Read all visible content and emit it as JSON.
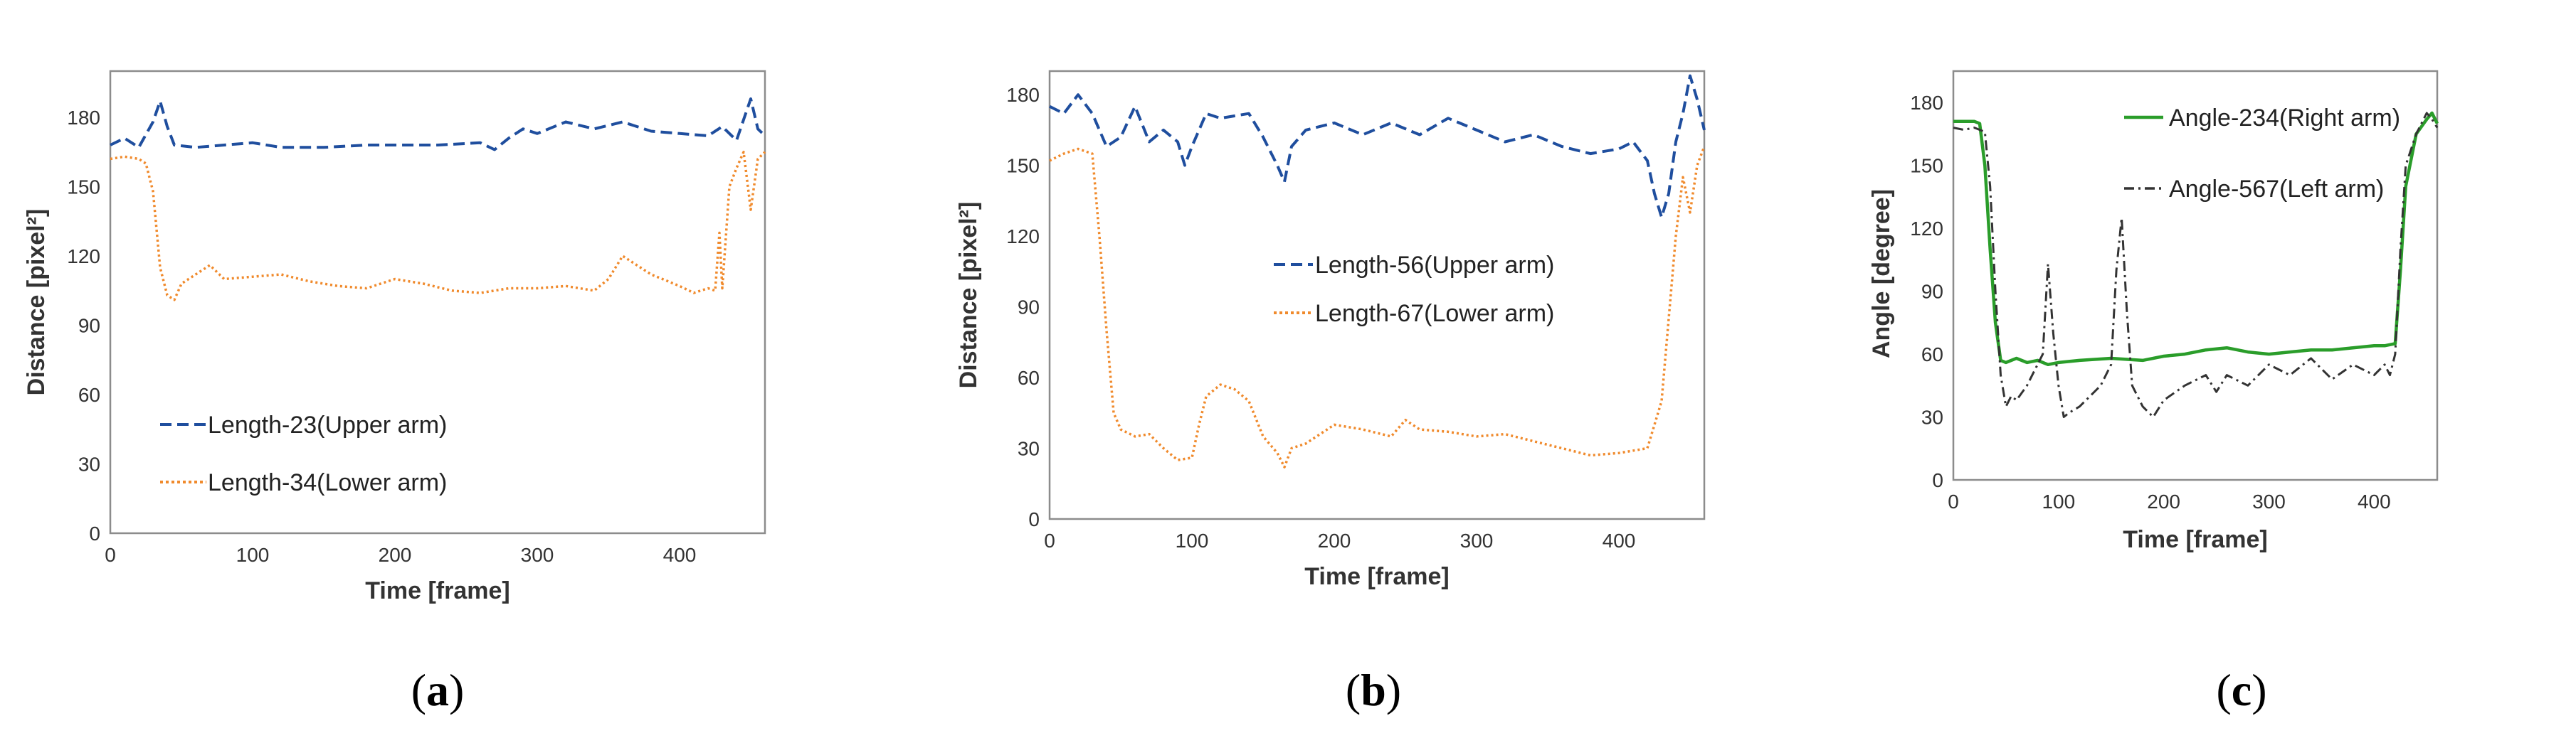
{
  "colors": {
    "upper": "#1f4e9e",
    "lower": "#f08a2c",
    "right_arm": "#2a9d2a",
    "left_arm": "#333333"
  },
  "chart_data": [
    {
      "id": "a",
      "type": "line",
      "caption": "a",
      "xlabel": "Time [frame]",
      "ylabel": "Distance [pixel²]",
      "xlim": [
        0,
        460
      ],
      "ylim": [
        0,
        200
      ],
      "xticks": [
        0,
        100,
        200,
        300,
        400
      ],
      "yticks": [
        0,
        30,
        60,
        90,
        120,
        150,
        180
      ],
      "legend_position": "lower-left",
      "series": [
        {
          "name": "Length-23(Upper arm)",
          "color": "#1f4e9e",
          "style": "dashed",
          "points": [
            [
              0,
              168
            ],
            [
              10,
              171
            ],
            [
              20,
              167
            ],
            [
              30,
              178
            ],
            [
              35,
              187
            ],
            [
              40,
              176
            ],
            [
              45,
              168
            ],
            [
              60,
              167
            ],
            [
              80,
              168
            ],
            [
              100,
              169
            ],
            [
              120,
              167
            ],
            [
              150,
              167
            ],
            [
              180,
              168
            ],
            [
              200,
              168
            ],
            [
              230,
              168
            ],
            [
              260,
              169
            ],
            [
              270,
              166
            ],
            [
              280,
              171
            ],
            [
              290,
              175
            ],
            [
              300,
              173
            ],
            [
              320,
              178
            ],
            [
              340,
              175
            ],
            [
              360,
              178
            ],
            [
              380,
              174
            ],
            [
              400,
              173
            ],
            [
              420,
              172
            ],
            [
              430,
              176
            ],
            [
              440,
              170
            ],
            [
              450,
              188
            ],
            [
              455,
              175
            ],
            [
              460,
              172
            ]
          ]
        },
        {
          "name": "Length-34(Lower arm)",
          "color": "#f08a2c",
          "style": "dotted",
          "points": [
            [
              0,
              162
            ],
            [
              10,
              163
            ],
            [
              20,
              162
            ],
            [
              25,
              160
            ],
            [
              30,
              148
            ],
            [
              35,
              115
            ],
            [
              40,
              103
            ],
            [
              45,
              101
            ],
            [
              50,
              108
            ],
            [
              60,
              112
            ],
            [
              70,
              116
            ],
            [
              80,
              110
            ],
            [
              100,
              111
            ],
            [
              120,
              112
            ],
            [
              140,
              109
            ],
            [
              160,
              107
            ],
            [
              180,
              106
            ],
            [
              200,
              110
            ],
            [
              220,
              108
            ],
            [
              240,
              105
            ],
            [
              260,
              104
            ],
            [
              280,
              106
            ],
            [
              300,
              106
            ],
            [
              320,
              107
            ],
            [
              340,
              105
            ],
            [
              350,
              110
            ],
            [
              360,
              120
            ],
            [
              370,
              116
            ],
            [
              380,
              112
            ],
            [
              400,
              107
            ],
            [
              410,
              104
            ],
            [
              420,
              106
            ],
            [
              425,
              105
            ],
            [
              428,
              130
            ],
            [
              430,
              106
            ],
            [
              435,
              150
            ],
            [
              440,
              158
            ],
            [
              445,
              165
            ],
            [
              450,
              140
            ],
            [
              455,
              162
            ],
            [
              460,
              165
            ]
          ]
        }
      ]
    },
    {
      "id": "b",
      "type": "line",
      "caption": "b",
      "xlabel": "Time [frame]",
      "ylabel": "Distance [pixel²]",
      "xlim": [
        0,
        460
      ],
      "ylim": [
        0,
        190
      ],
      "xticks": [
        0,
        100,
        200,
        300,
        400
      ],
      "yticks": [
        0,
        30,
        60,
        90,
        120,
        150,
        180
      ],
      "legend_position": "center",
      "series": [
        {
          "name": "Length-56(Upper arm)",
          "color": "#1f4e9e",
          "style": "dashed",
          "points": [
            [
              0,
              175
            ],
            [
              10,
              172
            ],
            [
              20,
              180
            ],
            [
              30,
              172
            ],
            [
              40,
              158
            ],
            [
              50,
              162
            ],
            [
              60,
              175
            ],
            [
              70,
              160
            ],
            [
              80,
              165
            ],
            [
              90,
              160
            ],
            [
              95,
              150
            ],
            [
              100,
              158
            ],
            [
              110,
              172
            ],
            [
              120,
              170
            ],
            [
              140,
              172
            ],
            [
              150,
              162
            ],
            [
              160,
              150
            ],
            [
              165,
              143
            ],
            [
              170,
              158
            ],
            [
              180,
              165
            ],
            [
              200,
              168
            ],
            [
              220,
              163
            ],
            [
              240,
              168
            ],
            [
              260,
              163
            ],
            [
              280,
              170
            ],
            [
              300,
              165
            ],
            [
              320,
              160
            ],
            [
              340,
              163
            ],
            [
              360,
              158
            ],
            [
              380,
              155
            ],
            [
              400,
              157
            ],
            [
              410,
              160
            ],
            [
              420,
              152
            ],
            [
              425,
              138
            ],
            [
              430,
              128
            ],
            [
              435,
              138
            ],
            [
              440,
              160
            ],
            [
              445,
              172
            ],
            [
              450,
              188
            ],
            [
              455,
              178
            ],
            [
              460,
              165
            ]
          ]
        },
        {
          "name": "Length-67(Lower arm)",
          "color": "#f08a2c",
          "style": "dotted",
          "points": [
            [
              0,
              152
            ],
            [
              10,
              155
            ],
            [
              20,
              157
            ],
            [
              30,
              155
            ],
            [
              35,
              120
            ],
            [
              40,
              80
            ],
            [
              45,
              45
            ],
            [
              50,
              38
            ],
            [
              60,
              35
            ],
            [
              70,
              36
            ],
            [
              80,
              30
            ],
            [
              90,
              25
            ],
            [
              100,
              26
            ],
            [
              105,
              40
            ],
            [
              110,
              52
            ],
            [
              120,
              57
            ],
            [
              130,
              55
            ],
            [
              140,
              50
            ],
            [
              150,
              35
            ],
            [
              160,
              28
            ],
            [
              165,
              22
            ],
            [
              170,
              30
            ],
            [
              180,
              32
            ],
            [
              200,
              40
            ],
            [
              220,
              38
            ],
            [
              240,
              35
            ],
            [
              250,
              42
            ],
            [
              260,
              38
            ],
            [
              280,
              37
            ],
            [
              300,
              35
            ],
            [
              320,
              36
            ],
            [
              340,
              33
            ],
            [
              360,
              30
            ],
            [
              380,
              27
            ],
            [
              400,
              28
            ],
            [
              420,
              30
            ],
            [
              425,
              40
            ],
            [
              430,
              50
            ],
            [
              440,
              120
            ],
            [
              445,
              145
            ],
            [
              450,
              130
            ],
            [
              455,
              150
            ],
            [
              460,
              158
            ]
          ]
        }
      ]
    },
    {
      "id": "c",
      "type": "line",
      "caption": "c",
      "xlabel": "Time [frame]",
      "ylabel": "Angle [degree]",
      "xlim": [
        0,
        460
      ],
      "ylim": [
        0,
        195
      ],
      "xticks": [
        0,
        100,
        200,
        300,
        400
      ],
      "yticks": [
        0,
        30,
        60,
        90,
        120,
        150,
        180
      ],
      "legend_position": "top-center",
      "series": [
        {
          "name": "Angle-234(Right arm)",
          "color": "#2a9d2a",
          "style": "solid",
          "points": [
            [
              0,
              171
            ],
            [
              10,
              171
            ],
            [
              20,
              171
            ],
            [
              25,
              170
            ],
            [
              30,
              150
            ],
            [
              35,
              110
            ],
            [
              40,
              75
            ],
            [
              45,
              57
            ],
            [
              50,
              56
            ],
            [
              60,
              58
            ],
            [
              70,
              56
            ],
            [
              80,
              57
            ],
            [
              90,
              55
            ],
            [
              100,
              56
            ],
            [
              120,
              57
            ],
            [
              150,
              58
            ],
            [
              180,
              57
            ],
            [
              200,
              59
            ],
            [
              220,
              60
            ],
            [
              240,
              62
            ],
            [
              260,
              63
            ],
            [
              280,
              61
            ],
            [
              300,
              60
            ],
            [
              320,
              61
            ],
            [
              340,
              62
            ],
            [
              360,
              62
            ],
            [
              380,
              63
            ],
            [
              400,
              64
            ],
            [
              410,
              64
            ],
            [
              420,
              65
            ],
            [
              425,
              100
            ],
            [
              430,
              140
            ],
            [
              440,
              165
            ],
            [
              450,
              172
            ],
            [
              455,
              175
            ],
            [
              460,
              170
            ]
          ]
        },
        {
          "name": "Angle-567(Left arm)",
          "color": "#333333",
          "style": "dashdot",
          "points": [
            [
              0,
              168
            ],
            [
              10,
              167
            ],
            [
              20,
              168
            ],
            [
              30,
              166
            ],
            [
              35,
              140
            ],
            [
              40,
              90
            ],
            [
              45,
              50
            ],
            [
              50,
              35
            ],
            [
              55,
              40
            ],
            [
              60,
              38
            ],
            [
              70,
              45
            ],
            [
              80,
              55
            ],
            [
              85,
              60
            ],
            [
              90,
              103
            ],
            [
              95,
              70
            ],
            [
              100,
              45
            ],
            [
              105,
              30
            ],
            [
              110,
              32
            ],
            [
              120,
              35
            ],
            [
              130,
              40
            ],
            [
              140,
              45
            ],
            [
              150,
              55
            ],
            [
              155,
              100
            ],
            [
              160,
              125
            ],
            [
              165,
              80
            ],
            [
              170,
              45
            ],
            [
              180,
              35
            ],
            [
              190,
              30
            ],
            [
              200,
              38
            ],
            [
              220,
              45
            ],
            [
              240,
              50
            ],
            [
              250,
              42
            ],
            [
              260,
              50
            ],
            [
              280,
              45
            ],
            [
              300,
              55
            ],
            [
              320,
              50
            ],
            [
              340,
              58
            ],
            [
              360,
              48
            ],
            [
              380,
              55
            ],
            [
              400,
              50
            ],
            [
              410,
              55
            ],
            [
              415,
              50
            ],
            [
              420,
              60
            ],
            [
              425,
              110
            ],
            [
              430,
              150
            ],
            [
              440,
              165
            ],
            [
              450,
              175
            ],
            [
              455,
              172
            ],
            [
              460,
              168
            ]
          ]
        }
      ]
    }
  ]
}
